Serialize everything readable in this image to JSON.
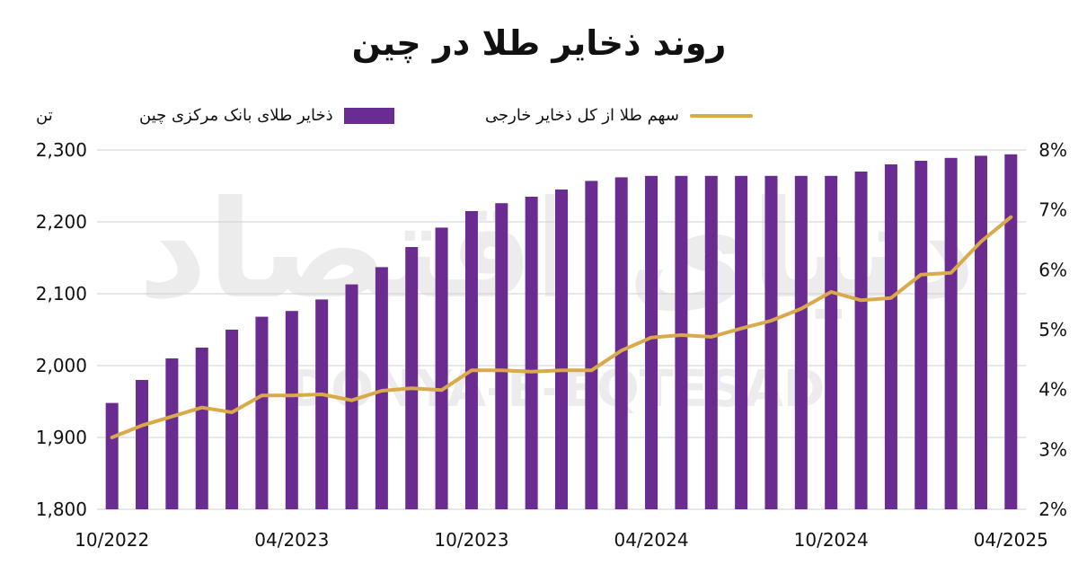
{
  "chart_data": {
    "type": "bar",
    "title": "روند ذخایر طلا در چین",
    "unit_label": "تن",
    "legend_position": "top",
    "colors": {
      "bars": "#6a2c91",
      "line": "#d9a94a",
      "grid": "#cfcfcf",
      "watermark": "#ececec"
    },
    "x_tick_labels": [
      "10/2022",
      "04/2023",
      "10/2023",
      "04/2024",
      "10/2024",
      "04/2025"
    ],
    "x": [
      "10/2022",
      "11/2022",
      "12/2022",
      "01/2023",
      "02/2023",
      "03/2023",
      "04/2023",
      "05/2023",
      "06/2023",
      "07/2023",
      "08/2023",
      "09/2023",
      "10/2023",
      "11/2023",
      "12/2023",
      "01/2024",
      "02/2024",
      "03/2024",
      "04/2024",
      "05/2024",
      "06/2024",
      "07/2024",
      "08/2024",
      "09/2024",
      "10/2024",
      "11/2024",
      "12/2024",
      "01/2025",
      "02/2025",
      "03/2025",
      "04/2025"
    ],
    "y_left": {
      "ylim": [
        1800,
        2300
      ],
      "ticks": [
        "1,800",
        "1,900",
        "2,000",
        "2,100",
        "2,200",
        "2,300"
      ],
      "tick_values": [
        1800,
        1900,
        2000,
        2100,
        2200,
        2300
      ]
    },
    "y_right": {
      "ylim": [
        2,
        8
      ],
      "ticks": [
        "2%",
        "3%",
        "4%",
        "5%",
        "6%",
        "7%",
        "8%"
      ],
      "tick_values": [
        2,
        3,
        4,
        5,
        6,
        7,
        8
      ]
    },
    "series": [
      {
        "name": "ذخایر طلای بانک مرکزی چین",
        "type": "bar",
        "axis": "left",
        "values": [
          1948,
          1980,
          2010,
          2025,
          2050,
          2068,
          2076,
          2092,
          2113,
          2137,
          2165,
          2192,
          2215,
          2226,
          2235,
          2245,
          2257,
          2262,
          2264,
          2264,
          2264,
          2264,
          2264,
          2264,
          2264,
          2270,
          2280,
          2285,
          2289,
          2292,
          2294
        ]
      },
      {
        "name": "سهم طلا از کل ذخایر خارجی",
        "type": "line",
        "axis": "right",
        "values": [
          3.2,
          3.4,
          3.55,
          3.7,
          3.62,
          3.9,
          3.9,
          3.92,
          3.82,
          3.98,
          4.02,
          3.99,
          4.32,
          4.32,
          4.3,
          4.32,
          4.32,
          4.65,
          4.87,
          4.91,
          4.88,
          5.02,
          5.15,
          5.35,
          5.63,
          5.49,
          5.53,
          5.92,
          5.95,
          6.47,
          6.88
        ]
      }
    ],
    "watermark": {
      "text_fa": "دنیای اقتصاد",
      "text_en": "DONYA-E-EQTESAD"
    }
  }
}
